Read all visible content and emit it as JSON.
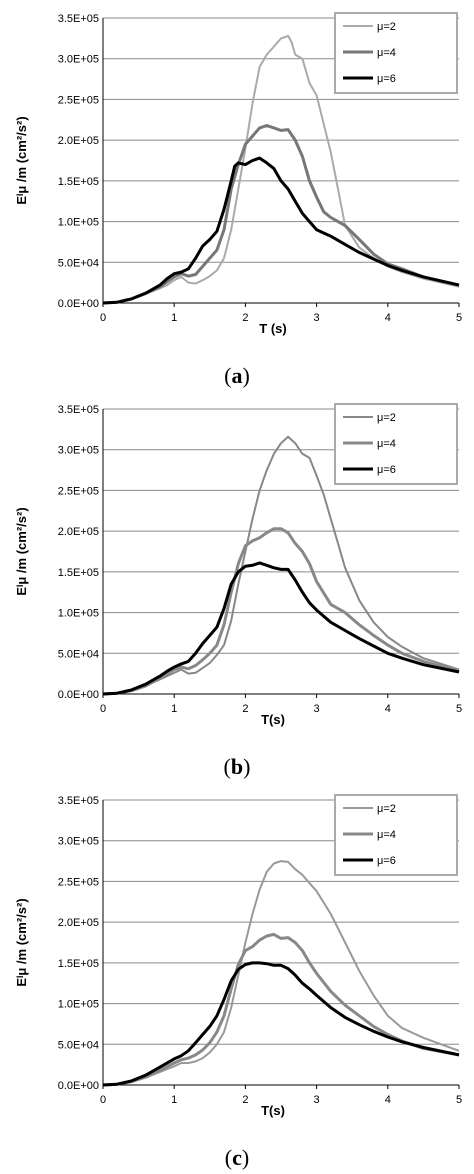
{
  "chart_data": [
    {
      "type": "line",
      "caption_open": "(",
      "caption_letter": "a",
      "caption_close": ")",
      "xlabel": "T (s)",
      "ylabel": "Eᴵμ /m (cm²/s²)",
      "xlim": [
        0,
        5
      ],
      "ylim": [
        0,
        350000
      ],
      "xticks": [
        "0",
        "1",
        "2",
        "3",
        "4",
        "5"
      ],
      "yticks": [
        "0.0E+00",
        "5.0E+04",
        "1.0E+05",
        "1.5E+05",
        "2.0E+05",
        "2.5E+05",
        "3.0E+05",
        "3.5E+05"
      ],
      "grid": "horizontal",
      "legend_position": "top-right",
      "series": [
        {
          "name": "μ=2",
          "color": "#aaaaaa",
          "width": 2,
          "x": [
            0,
            0.2,
            0.4,
            0.6,
            0.8,
            0.9,
            1.0,
            1.1,
            1.2,
            1.3,
            1.4,
            1.5,
            1.6,
            1.7,
            1.8,
            1.9,
            2.0,
            2.1,
            2.2,
            2.3,
            2.4,
            2.5,
            2.6,
            2.65,
            2.7,
            2.8,
            2.9,
            3.0,
            3.1,
            3.2,
            3.3,
            3.4,
            3.6,
            3.8,
            4.0,
            4.2,
            4.5,
            5.0
          ],
          "y": [
            0,
            1000,
            5000,
            11000,
            18000,
            22000,
            28000,
            32000,
            25000,
            24000,
            28000,
            33000,
            40000,
            55000,
            90000,
            140000,
            190000,
            245000,
            290000,
            305000,
            315000,
            325000,
            328000,
            320000,
            305000,
            300000,
            270000,
            255000,
            220000,
            185000,
            140000,
            95000,
            68000,
            55000,
            45000,
            38000,
            30000,
            20000
          ]
        },
        {
          "name": "μ=4",
          "color": "#777777",
          "width": 3,
          "x": [
            0,
            0.2,
            0.4,
            0.6,
            0.8,
            0.9,
            1.0,
            1.1,
            1.2,
            1.3,
            1.4,
            1.5,
            1.6,
            1.7,
            1.8,
            1.9,
            2.0,
            2.1,
            2.2,
            2.3,
            2.4,
            2.5,
            2.6,
            2.7,
            2.8,
            2.9,
            3.0,
            3.1,
            3.2,
            3.3,
            3.4,
            3.6,
            3.8,
            4.0,
            4.2,
            4.5,
            5.0
          ],
          "y": [
            0,
            1000,
            5000,
            12000,
            20000,
            26000,
            32000,
            36000,
            33000,
            35000,
            45000,
            55000,
            65000,
            90000,
            140000,
            170000,
            195000,
            205000,
            215000,
            218000,
            215000,
            212000,
            213000,
            200000,
            180000,
            150000,
            130000,
            112000,
            105000,
            100000,
            95000,
            78000,
            60000,
            48000,
            42000,
            32000,
            22000
          ]
        },
        {
          "name": "μ=6",
          "color": "#000000",
          "width": 3,
          "x": [
            0,
            0.2,
            0.4,
            0.6,
            0.8,
            0.9,
            1.0,
            1.1,
            1.2,
            1.3,
            1.4,
            1.5,
            1.6,
            1.7,
            1.8,
            1.85,
            1.9,
            2.0,
            2.1,
            2.2,
            2.3,
            2.4,
            2.5,
            2.6,
            2.7,
            2.8,
            2.9,
            3.0,
            3.2,
            3.4,
            3.6,
            3.8,
            4.0,
            4.2,
            4.5,
            5.0
          ],
          "y": [
            0,
            1000,
            5000,
            12000,
            22000,
            30000,
            36000,
            38000,
            42000,
            55000,
            70000,
            78000,
            88000,
            115000,
            150000,
            168000,
            172000,
            170000,
            175000,
            178000,
            172000,
            165000,
            150000,
            140000,
            125000,
            110000,
            100000,
            90000,
            82000,
            72000,
            62000,
            54000,
            46000,
            40000,
            32000,
            22000
          ]
        }
      ]
    },
    {
      "type": "line",
      "caption_open": "(",
      "caption_letter": "b",
      "caption_close": ")",
      "xlabel": "T(s)",
      "ylabel": "Eᴵμ /m (cm²/s²)",
      "xlim": [
        0,
        5
      ],
      "ylim": [
        0,
        350000
      ],
      "xticks": [
        "0",
        "1",
        "2",
        "3",
        "4",
        "5"
      ],
      "yticks": [
        "0.0E+00",
        "5.0E+04",
        "1.0E+05",
        "1.5E+05",
        "2.0E+05",
        "2.5E+05",
        "3.0E+05",
        "3.5E+05"
      ],
      "grid": "horizontal",
      "legend_position": "top-right",
      "series": [
        {
          "name": "μ=2",
          "color": "#888888",
          "width": 2,
          "x": [
            0,
            0.2,
            0.4,
            0.6,
            0.8,
            1.0,
            1.1,
            1.2,
            1.3,
            1.4,
            1.5,
            1.6,
            1.7,
            1.8,
            1.9,
            2.0,
            2.1,
            2.2,
            2.3,
            2.4,
            2.5,
            2.6,
            2.7,
            2.8,
            2.9,
            3.0,
            3.1,
            3.2,
            3.3,
            3.4,
            3.6,
            3.8,
            4.0,
            4.2,
            4.5,
            5.0
          ],
          "y": [
            0,
            1000,
            4000,
            10000,
            18000,
            26000,
            30000,
            25000,
            26000,
            32000,
            38000,
            48000,
            60000,
            90000,
            135000,
            175000,
            215000,
            250000,
            275000,
            295000,
            308000,
            316000,
            308000,
            295000,
            290000,
            268000,
            245000,
            215000,
            185000,
            155000,
            115000,
            88000,
            70000,
            58000,
            44000,
            30000
          ]
        },
        {
          "name": "μ=4",
          "color": "#888888",
          "width": 3,
          "x": [
            0,
            0.2,
            0.4,
            0.6,
            0.8,
            1.0,
            1.1,
            1.2,
            1.3,
            1.4,
            1.5,
            1.6,
            1.7,
            1.8,
            1.9,
            2.0,
            2.1,
            2.2,
            2.3,
            2.4,
            2.5,
            2.6,
            2.7,
            2.8,
            2.9,
            3.0,
            3.2,
            3.4,
            3.6,
            3.8,
            4.0,
            4.2,
            4.5,
            5.0
          ],
          "y": [
            0,
            1000,
            4000,
            10000,
            20000,
            30000,
            33000,
            31000,
            35000,
            42000,
            50000,
            60000,
            85000,
            125000,
            160000,
            182000,
            188000,
            192000,
            198000,
            203000,
            203000,
            198000,
            185000,
            175000,
            160000,
            138000,
            110000,
            100000,
            85000,
            72000,
            60000,
            50000,
            40000,
            28000
          ]
        },
        {
          "name": "μ=6",
          "color": "#000000",
          "width": 3,
          "x": [
            0,
            0.2,
            0.4,
            0.6,
            0.8,
            0.9,
            1.0,
            1.1,
            1.2,
            1.3,
            1.4,
            1.5,
            1.6,
            1.7,
            1.8,
            1.9,
            2.0,
            2.1,
            2.2,
            2.3,
            2.4,
            2.5,
            2.6,
            2.7,
            2.8,
            2.9,
            3.0,
            3.2,
            3.4,
            3.6,
            3.8,
            4.0,
            4.2,
            4.5,
            5.0
          ],
          "y": [
            0,
            1000,
            5000,
            12000,
            22000,
            28000,
            33000,
            37000,
            40000,
            50000,
            62000,
            72000,
            82000,
            105000,
            135000,
            150000,
            157000,
            158000,
            161000,
            158000,
            155000,
            153000,
            153000,
            140000,
            125000,
            112000,
            103000,
            88000,
            78000,
            68000,
            59000,
            50000,
            44000,
            36000,
            27000
          ]
        }
      ]
    },
    {
      "type": "line",
      "caption_open": "(",
      "caption_letter": "c",
      "caption_close": ")",
      "xlabel": "T(s)",
      "ylabel": "Eᴵμ /m (cm²/s²)",
      "xlim": [
        0,
        5
      ],
      "ylim": [
        0,
        350000
      ],
      "xticks": [
        "0",
        "1",
        "2",
        "3",
        "4",
        "5"
      ],
      "yticks": [
        "0.0E+00",
        "5.0E+04",
        "1.0E+05",
        "1.5E+05",
        "2.0E+05",
        "2.5E+05",
        "3.0E+05",
        "3.5E+05"
      ],
      "grid": "horizontal",
      "legend_position": "top-right",
      "series": [
        {
          "name": "μ=2",
          "color": "#999999",
          "width": 2,
          "x": [
            0,
            0.2,
            0.4,
            0.6,
            0.8,
            1.0,
            1.1,
            1.2,
            1.3,
            1.4,
            1.5,
            1.6,
            1.7,
            1.8,
            1.9,
            2.0,
            2.1,
            2.2,
            2.3,
            2.4,
            2.5,
            2.6,
            2.7,
            2.8,
            2.9,
            3.0,
            3.2,
            3.4,
            3.6,
            3.8,
            4.0,
            4.2,
            4.5,
            5.0
          ],
          "y": [
            0,
            1000,
            4000,
            9000,
            16000,
            23000,
            27000,
            27000,
            29000,
            33000,
            40000,
            50000,
            65000,
            95000,
            135000,
            175000,
            210000,
            240000,
            262000,
            272000,
            275000,
            274000,
            265000,
            258000,
            248000,
            238000,
            210000,
            175000,
            140000,
            110000,
            85000,
            70000,
            58000,
            42000
          ]
        },
        {
          "name": "μ=4",
          "color": "#888888",
          "width": 3,
          "x": [
            0,
            0.2,
            0.4,
            0.6,
            0.8,
            1.0,
            1.1,
            1.2,
            1.3,
            1.4,
            1.5,
            1.6,
            1.7,
            1.8,
            1.9,
            2.0,
            2.1,
            2.2,
            2.3,
            2.4,
            2.5,
            2.6,
            2.7,
            2.8,
            2.9,
            3.0,
            3.2,
            3.4,
            3.6,
            3.8,
            4.0,
            4.2,
            4.5,
            5.0
          ],
          "y": [
            0,
            1000,
            4000,
            10000,
            18000,
            27000,
            31000,
            33000,
            37000,
            43000,
            52000,
            65000,
            85000,
            118000,
            148000,
            165000,
            170000,
            178000,
            183000,
            185000,
            180000,
            181000,
            175000,
            165000,
            150000,
            137000,
            115000,
            98000,
            85000,
            72000,
            62000,
            54000,
            45000,
            37000
          ]
        },
        {
          "name": "μ=6",
          "color": "#000000",
          "width": 3,
          "x": [
            0,
            0.2,
            0.4,
            0.6,
            0.8,
            1.0,
            1.1,
            1.2,
            1.3,
            1.4,
            1.5,
            1.6,
            1.7,
            1.8,
            1.9,
            2.0,
            2.1,
            2.2,
            2.3,
            2.4,
            2.5,
            2.6,
            2.7,
            2.8,
            2.9,
            3.0,
            3.2,
            3.4,
            3.6,
            3.8,
            4.0,
            4.2,
            4.5,
            5.0
          ],
          "y": [
            0,
            1000,
            5000,
            12000,
            22000,
            32000,
            36000,
            42000,
            52000,
            62000,
            72000,
            85000,
            105000,
            128000,
            142000,
            148000,
            150000,
            150000,
            149000,
            147000,
            147000,
            143000,
            135000,
            125000,
            118000,
            110000,
            95000,
            83000,
            74000,
            66000,
            59000,
            53000,
            46000,
            37000
          ]
        }
      ]
    }
  ]
}
